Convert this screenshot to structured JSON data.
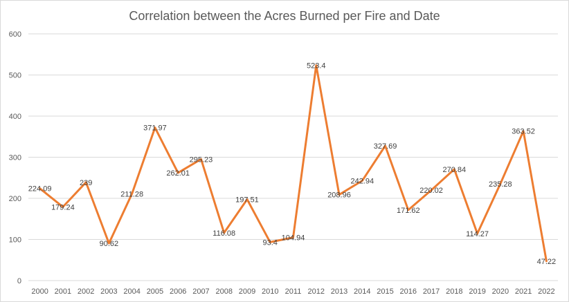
{
  "chart_data": {
    "type": "line",
    "title": "Correlation between the Acres Burned per Fire and  Date",
    "xlabel": "",
    "ylabel": "",
    "categories": [
      "2000",
      "2001",
      "2002",
      "2003",
      "2004",
      "2005",
      "2006",
      "2007",
      "2008",
      "2009",
      "2010",
      "2011",
      "2012",
      "2013",
      "2014",
      "2015",
      "2016",
      "2017",
      "2018",
      "2019",
      "2020",
      "2021",
      "2022"
    ],
    "series": [
      {
        "values": [
          224.09,
          179.24,
          239,
          90.62,
          211.28,
          371.97,
          262.01,
          295.23,
          116.08,
          197.51,
          93.4,
          104.94,
          523.4,
          208.96,
          242.94,
          327.69,
          171.62,
          220.02,
          270.84,
          114.27,
          235.28,
          363.52,
          47.22
        ],
        "labels": [
          "224.09",
          "179.24",
          "239",
          "90.62",
          "211.28",
          "371.97",
          "262.01",
          "295.23",
          "116.08",
          "197.51",
          "93.4",
          "104.94",
          "523.4",
          "208.96",
          "242.94",
          "327.69",
          "171.62",
          "220.02",
          "270.84",
          "114.27",
          "235.28",
          "363.52",
          "47.22"
        ],
        "color": "#ED7D31"
      }
    ],
    "ylim": [
      0,
      600
    ],
    "yticks": [
      "0",
      "100",
      "200",
      "300",
      "400",
      "500",
      "600"
    ],
    "grid": true,
    "legend": "none",
    "gridColor": "#d9d9d9"
  }
}
